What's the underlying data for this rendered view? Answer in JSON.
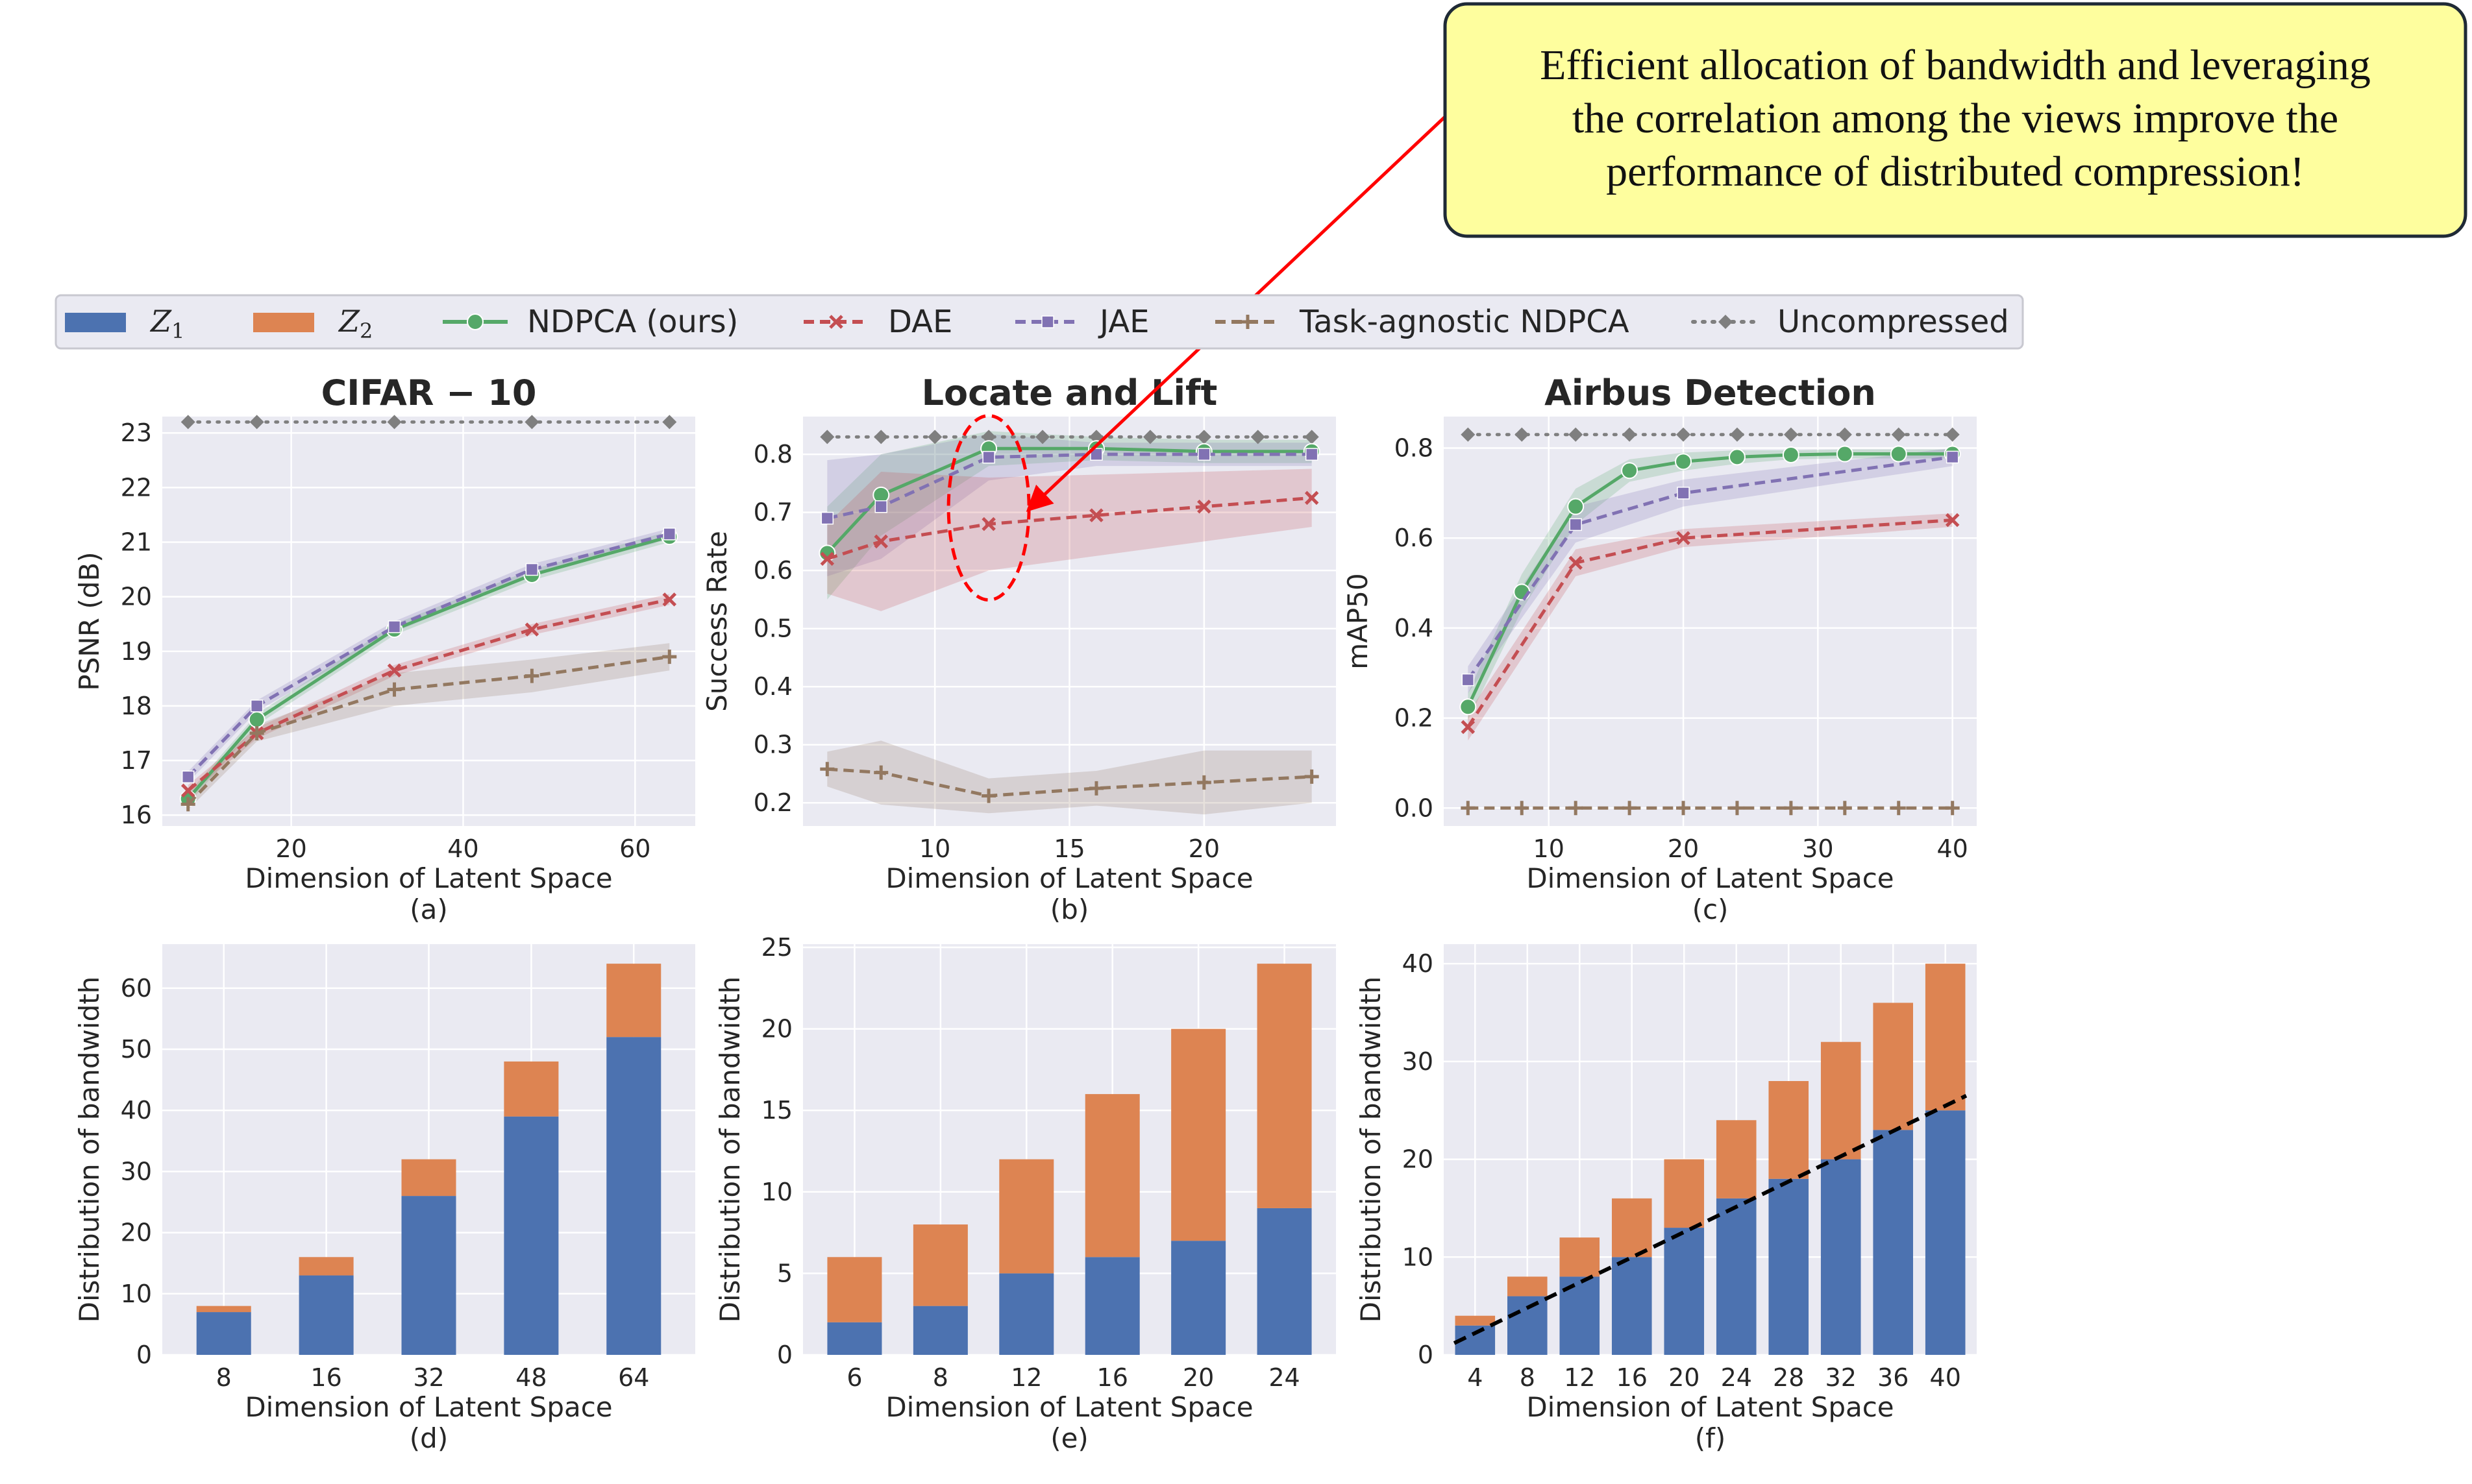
{
  "callout": {
    "lines": [
      "Efficient allocation of bandwidth and leveraging",
      "the correlation among the views improve the",
      "performance of distributed compression!"
    ]
  },
  "legend": {
    "entries": [
      {
        "key": "z1",
        "label": "Z",
        "sub": "1",
        "kind": "bar",
        "color": "#4c72b0"
      },
      {
        "key": "z2",
        "label": "Z",
        "sub": "2",
        "kind": "bar",
        "color": "#dd8452"
      },
      {
        "key": "ndpca",
        "label": "NDPCA (ours)",
        "kind": "line",
        "color": "#55a868",
        "dash": "solid",
        "marker": "circle"
      },
      {
        "key": "dae",
        "label": "DAE",
        "kind": "line",
        "color": "#c44e52",
        "dash": "dashed",
        "marker": "x"
      },
      {
        "key": "jae",
        "label": "JAE",
        "kind": "line",
        "color": "#8172b3",
        "dash": "dashed",
        "marker": "square"
      },
      {
        "key": "tagn",
        "label": "Task-agnostic NDPCA",
        "kind": "line",
        "color": "#937860",
        "dash": "dashed",
        "marker": "plus"
      },
      {
        "key": "unc",
        "label": "Uncompressed",
        "kind": "line",
        "color": "#7f7f7f",
        "dash": "dotted",
        "marker": "diamond"
      }
    ]
  },
  "chart_data": [
    {
      "id": "a",
      "type": "line",
      "title": "CIFAR − 10",
      "caption": "(a)",
      "xlabel": "Dimension of Latent Space",
      "ylabel": "PSNR (dB)",
      "xlim": [
        5,
        67
      ],
      "ylim": [
        15.8,
        23.3
      ],
      "xticks": [
        20,
        40,
        60
      ],
      "yticks": [
        16,
        17,
        18,
        19,
        20,
        21,
        22,
        23
      ],
      "series": [
        {
          "key": "unc",
          "x": [
            8,
            16,
            32,
            48,
            64
          ],
          "y": [
            23.2,
            23.2,
            23.2,
            23.2,
            23.2
          ]
        },
        {
          "key": "ndpca",
          "x": [
            8,
            16,
            32,
            48,
            64
          ],
          "y": [
            16.3,
            17.75,
            19.4,
            20.4,
            21.1
          ],
          "band": [
            0.1,
            0.1,
            0.1,
            0.1,
            0.1
          ]
        },
        {
          "key": "jae",
          "x": [
            8,
            16,
            32,
            48,
            64
          ],
          "y": [
            16.7,
            18.0,
            19.45,
            20.5,
            21.15
          ],
          "band": [
            0.1,
            0.1,
            0.1,
            0.1,
            0.1
          ]
        },
        {
          "key": "dae",
          "x": [
            8,
            16,
            32,
            48,
            64
          ],
          "y": [
            16.45,
            17.5,
            18.65,
            19.4,
            19.95
          ],
          "band": [
            0.1,
            0.1,
            0.1,
            0.1,
            0.1
          ]
        },
        {
          "key": "tagn",
          "x": [
            8,
            16,
            32,
            48,
            64
          ],
          "y": [
            16.2,
            17.5,
            18.3,
            18.55,
            18.9
          ],
          "band": [
            0.1,
            0.15,
            0.3,
            0.3,
            0.25
          ]
        }
      ]
    },
    {
      "id": "b",
      "type": "line",
      "title": "Locate and Lift",
      "caption": "(b)",
      "xlabel": "Dimension of Latent Space",
      "ylabel": "Success Rate",
      "xlim": [
        5.1,
        24.9
      ],
      "ylim": [
        0.16,
        0.865
      ],
      "xticks": [
        10,
        15,
        20
      ],
      "yticks": [
        0.2,
        0.3,
        0.4,
        0.5,
        0.6,
        0.7,
        0.8
      ],
      "series": [
        {
          "key": "unc",
          "x": [
            6,
            8,
            10,
            12,
            14,
            16,
            18,
            20,
            22,
            24
          ],
          "y": [
            0.83,
            0.83,
            0.83,
            0.83,
            0.83,
            0.83,
            0.83,
            0.83,
            0.83,
            0.83
          ]
        },
        {
          "key": "ndpca",
          "x": [
            6,
            8,
            12,
            16,
            20,
            24
          ],
          "y": [
            0.63,
            0.73,
            0.81,
            0.81,
            0.805,
            0.805
          ],
          "band": [
            0.08,
            0.07,
            0.03,
            0.02,
            0.02,
            0.02
          ]
        },
        {
          "key": "jae",
          "x": [
            6,
            8,
            12,
            16,
            20,
            24
          ],
          "y": [
            0.69,
            0.71,
            0.795,
            0.8,
            0.8,
            0.8
          ],
          "band": [
            0.1,
            0.09,
            0.04,
            0.02,
            0.02,
            0.02
          ]
        },
        {
          "key": "dae",
          "x": [
            6,
            8,
            12,
            16,
            20,
            24
          ],
          "y": [
            0.62,
            0.65,
            0.68,
            0.695,
            0.71,
            0.725
          ],
          "band": [
            0.06,
            0.12,
            0.08,
            0.07,
            0.06,
            0.05
          ]
        },
        {
          "key": "tagn",
          "x": [
            6,
            8,
            12,
            16,
            20,
            24
          ],
          "y": [
            0.258,
            0.252,
            0.212,
            0.225,
            0.235,
            0.245
          ],
          "band": [
            0.03,
            0.055,
            0.03,
            0.03,
            0.055,
            0.045
          ]
        }
      ],
      "highlight": {
        "shape": "dashed-ellipse",
        "x": 12,
        "y": 0.68,
        "color": "#ff0000"
      }
    },
    {
      "id": "c",
      "type": "line",
      "title": "Airbus Detection",
      "caption": "(c)",
      "xlabel": "Dimension of Latent Space",
      "ylabel": "mAP50",
      "xlim": [
        2.2,
        41.8
      ],
      "ylim": [
        -0.04,
        0.87
      ],
      "xticks": [
        10,
        20,
        30,
        40
      ],
      "yticks": [
        0.0,
        0.2,
        0.4,
        0.6,
        0.8
      ],
      "series": [
        {
          "key": "unc",
          "x": [
            4,
            8,
            12,
            16,
            20,
            24,
            28,
            32,
            36,
            40
          ],
          "y": [
            0.83,
            0.83,
            0.83,
            0.83,
            0.83,
            0.83,
            0.83,
            0.83,
            0.83,
            0.83
          ]
        },
        {
          "key": "ndpca",
          "x": [
            4,
            8,
            12,
            16,
            20,
            24,
            28,
            32,
            36,
            40
          ],
          "y": [
            0.225,
            0.48,
            0.67,
            0.75,
            0.77,
            0.78,
            0.785,
            0.787,
            0.787,
            0.787
          ],
          "band": [
            0.03,
            0.04,
            0.04,
            0.025,
            0.02,
            0.015,
            0.01,
            0.01,
            0.01,
            0.01
          ]
        },
        {
          "key": "jae",
          "x": [
            4,
            12,
            20,
            40
          ],
          "y": [
            0.285,
            0.63,
            0.7,
            0.78
          ],
          "band": [
            0.03,
            0.04,
            0.03,
            0.02
          ]
        },
        {
          "key": "dae",
          "x": [
            4,
            12,
            20,
            40
          ],
          "y": [
            0.18,
            0.545,
            0.6,
            0.64
          ],
          "band": [
            0.03,
            0.03,
            0.02,
            0.015
          ]
        },
        {
          "key": "tagn",
          "x": [
            4,
            8,
            12,
            16,
            20,
            24,
            28,
            32,
            36,
            40
          ],
          "y": [
            0,
            0,
            0,
            0,
            0,
            0,
            0,
            0,
            0,
            0
          ]
        }
      ]
    },
    {
      "id": "d",
      "type": "bar",
      "caption": "(d)",
      "stacked": true,
      "xlabel": "Dimension of Latent Space",
      "ylabel": "Distribution of bandwidth",
      "ylim": [
        0,
        67.2
      ],
      "yticks": [
        0,
        10,
        20,
        30,
        40,
        50,
        60
      ],
      "categories": [
        "8",
        "16",
        "32",
        "48",
        "64"
      ],
      "series": [
        {
          "key": "z1",
          "values": [
            7,
            13,
            26,
            39,
            52
          ]
        },
        {
          "key": "z2",
          "values": [
            1,
            3,
            6,
            9,
            12
          ]
        }
      ]
    },
    {
      "id": "e",
      "type": "bar",
      "caption": "(e)",
      "stacked": true,
      "xlabel": "Dimension of Latent Space",
      "ylabel": "Distribution of bandwidth",
      "ylim": [
        0,
        25.2
      ],
      "yticks": [
        0,
        5,
        10,
        15,
        20,
        25
      ],
      "categories": [
        "6",
        "8",
        "12",
        "16",
        "20",
        "24"
      ],
      "series": [
        {
          "key": "z1",
          "values": [
            2,
            3,
            5,
            6,
            7,
            9
          ]
        },
        {
          "key": "z2",
          "values": [
            4,
            5,
            7,
            10,
            13,
            15
          ]
        }
      ]
    },
    {
      "id": "f",
      "type": "bar",
      "caption": "(f)",
      "stacked": true,
      "xlabel": "Dimension of Latent Space",
      "ylabel": "Distribution of bandwidth",
      "ylim": [
        0,
        42
      ],
      "yticks": [
        0,
        10,
        20,
        30,
        40
      ],
      "categories": [
        "4",
        "8",
        "12",
        "16",
        "20",
        "24",
        "28",
        "32",
        "36",
        "40"
      ],
      "series": [
        {
          "key": "z1",
          "values": [
            3,
            6,
            8,
            10,
            13,
            16,
            18,
            20,
            23,
            25
          ]
        },
        {
          "key": "z2",
          "values": [
            1,
            2,
            4,
            6,
            7,
            8,
            10,
            12,
            13,
            15
          ]
        }
      ],
      "trendline": {
        "dash": "dashed",
        "color": "#000000",
        "from": [
          -0.4,
          1.2
        ],
        "to": [
          9.4,
          26.5
        ]
      }
    }
  ]
}
